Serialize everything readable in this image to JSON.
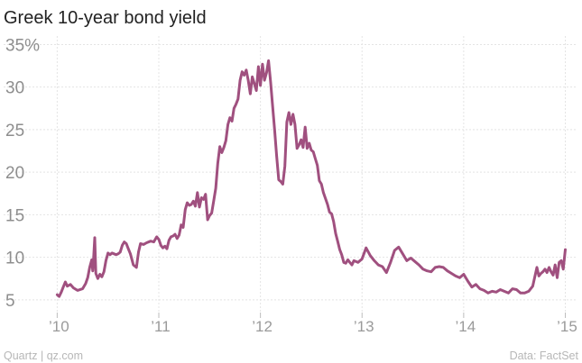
{
  "chart_data": {
    "type": "line",
    "title": "Greek 10-year bond yield",
    "xlabel": "",
    "ylabel": "",
    "x_tick_labels": [
      "’10",
      "’11",
      "’12",
      "’13",
      "’14",
      "’15"
    ],
    "y_tick_labels": [
      "35%",
      "30",
      "25",
      "20",
      "15",
      "10",
      "5"
    ],
    "y_ticks": [
      35,
      30,
      25,
      20,
      15,
      10,
      5
    ],
    "ylim": [
      3.5,
      36
    ],
    "xlim": [
      2009.97,
      2015.12
    ],
    "grid": true,
    "series": [
      {
        "color": "#a0507f",
        "x": [
          2010.0,
          2010.02,
          2010.04,
          2010.06,
          2010.08,
          2010.1,
          2010.13,
          2010.16,
          2010.2,
          2010.25,
          2010.28,
          2010.3,
          2010.32,
          2010.34,
          2010.35,
          2010.36,
          2010.37,
          2010.38,
          2010.4,
          2010.42,
          2010.44,
          2010.46,
          2010.48,
          2010.5,
          2010.52,
          2010.54,
          2010.56,
          2010.58,
          2010.6,
          2010.62,
          2010.64,
          2010.66,
          2010.68,
          2010.7,
          2010.72,
          2010.75,
          2010.78,
          2010.8,
          2010.82,
          2010.85,
          2010.88,
          2010.92,
          2010.95,
          2010.98,
          2011.0,
          2011.02,
          2011.04,
          2011.06,
          2011.08,
          2011.1,
          2011.12,
          2011.14,
          2011.16,
          2011.18,
          2011.2,
          2011.22,
          2011.24,
          2011.26,
          2011.28,
          2011.3,
          2011.32,
          2011.34,
          2011.36,
          2011.38,
          2011.4,
          2011.42,
          2011.44,
          2011.46,
          2011.48,
          2011.5,
          2011.52,
          2011.54,
          2011.56,
          2011.58,
          2011.6,
          2011.62,
          2011.64,
          2011.66,
          2011.68,
          2011.7,
          2011.72,
          2011.74,
          2011.76,
          2011.78,
          2011.8,
          2011.82,
          2011.84,
          2011.86,
          2011.88,
          2011.9,
          2011.92,
          2011.94,
          2011.96,
          2011.98,
          2012.0,
          2012.02,
          2012.04,
          2012.06,
          2012.08,
          2012.1,
          2012.12,
          2012.14,
          2012.16,
          2012.18,
          2012.2,
          2012.22,
          2012.24,
          2012.26,
          2012.28,
          2012.3,
          2012.32,
          2012.34,
          2012.36,
          2012.38,
          2012.4,
          2012.42,
          2012.44,
          2012.46,
          2012.48,
          2012.5,
          2012.52,
          2012.54,
          2012.56,
          2012.58,
          2012.6,
          2012.62,
          2012.64,
          2012.66,
          2012.68,
          2012.7,
          2012.72,
          2012.74,
          2012.76,
          2012.78,
          2012.8,
          2012.82,
          2012.84,
          2012.86,
          2012.88,
          2012.9,
          2012.92,
          2012.96,
          2013.0,
          2013.04,
          2013.08,
          2013.12,
          2013.16,
          2013.2,
          2013.24,
          2013.28,
          2013.32,
          2013.36,
          2013.4,
          2013.44,
          2013.48,
          2013.52,
          2013.56,
          2013.6,
          2013.64,
          2013.68,
          2013.72,
          2013.76,
          2013.8,
          2013.84,
          2013.88,
          2013.92,
          2013.96,
          2014.0,
          2014.04,
          2014.08,
          2014.12,
          2014.16,
          2014.2,
          2014.24,
          2014.28,
          2014.32,
          2014.36,
          2014.4,
          2014.44,
          2014.48,
          2014.52,
          2014.56,
          2014.6,
          2014.64,
          2014.68,
          2014.72,
          2014.74,
          2014.76,
          2014.78,
          2014.8,
          2014.82,
          2014.84,
          2014.86,
          2014.88,
          2014.9,
          2014.92,
          2014.94,
          2014.96,
          2014.98,
          2015.0
        ],
        "y": [
          5.6,
          5.4,
          5.9,
          6.5,
          7.1,
          6.6,
          6.8,
          6.4,
          6.1,
          6.3,
          6.9,
          7.6,
          8.8,
          9.7,
          8.4,
          10.2,
          12.3,
          8.1,
          7.5,
          8.0,
          7.7,
          8.3,
          9.6,
          10.5,
          10.3,
          10.5,
          10.4,
          10.3,
          10.4,
          10.6,
          11.4,
          11.8,
          11.6,
          11.0,
          10.4,
          9.1,
          8.8,
          10.6,
          11.6,
          11.5,
          11.7,
          11.9,
          11.8,
          12.4,
          12.1,
          11.4,
          11.1,
          11.3,
          11.0,
          12.0,
          12.4,
          12.5,
          12.7,
          12.2,
          12.6,
          13.8,
          13.5,
          15.6,
          16.4,
          16.1,
          16.2,
          16.6,
          16.0,
          17.6,
          15.9,
          17.0,
          16.8,
          17.4,
          14.4,
          14.9,
          15.2,
          16.6,
          18.1,
          21.0,
          23.0,
          22.3,
          22.9,
          23.7,
          25.6,
          26.4,
          26.0,
          27.5,
          28.0,
          28.6,
          30.8,
          31.8,
          31.4,
          32.0,
          30.8,
          29.2,
          31.2,
          30.4,
          29.6,
          32.4,
          30.2,
          32.7,
          30.8,
          31.7,
          33.1,
          30.6,
          27.8,
          24.9,
          21.9,
          19.1,
          18.9,
          18.6,
          20.7,
          25.9,
          27.0,
          25.6,
          26.8,
          25.6,
          22.8,
          23.2,
          23.8,
          22.9,
          25.3,
          22.8,
          23.4,
          22.6,
          22.4,
          21.6,
          20.8,
          19.0,
          18.6,
          17.6,
          16.9,
          16.2,
          15.3,
          15.1,
          14.2,
          12.8,
          11.9,
          10.9,
          10.3,
          9.4,
          9.3,
          9.7,
          9.4,
          9.1,
          9.6,
          9.4,
          9.8,
          11.1,
          10.2,
          9.6,
          9.1,
          8.9,
          8.2,
          9.4,
          10.8,
          11.2,
          10.4,
          9.6,
          9.9,
          9.5,
          9.1,
          8.6,
          8.4,
          8.3,
          8.8,
          8.9,
          8.8,
          8.4,
          8.1,
          7.8,
          7.6,
          8.0,
          7.2,
          6.5,
          6.8,
          6.3,
          6.1,
          5.8,
          6.0,
          5.9,
          6.2,
          6.0,
          5.8,
          6.3,
          6.2,
          5.8,
          5.8,
          6.0,
          6.6,
          8.8,
          7.8,
          8.1,
          8.3,
          8.6,
          8.2,
          8.8,
          8.3,
          7.9,
          9.1,
          7.6,
          9.4,
          9.6,
          8.6,
          10.9
        ]
      }
    ]
  },
  "footer": {
    "source_left": "Quartz | qz.com",
    "source_right": "Data: FactSet"
  },
  "colors": {
    "line": "#a0507f",
    "grid": "#e4e4e4",
    "text": "#222222",
    "axis_text": "#9a9a9a"
  }
}
